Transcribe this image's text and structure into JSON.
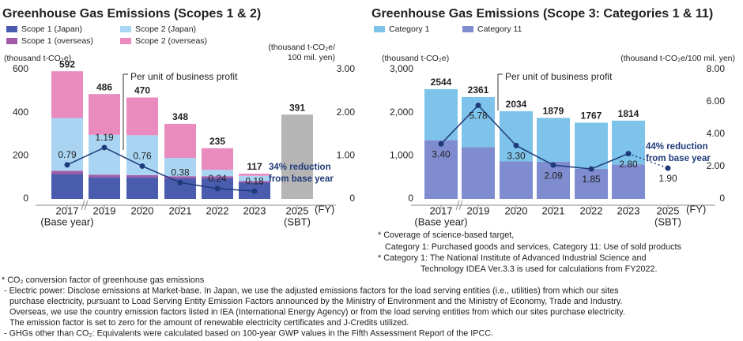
{
  "chart_data": [
    {
      "type": "bar",
      "title": "Greenhouse Gas Emissions (Scopes 1 & 2)",
      "categories": [
        "2017",
        "2019",
        "2020",
        "2021",
        "2022",
        "2023",
        "2025"
      ],
      "category_notes": [
        "(Base year)",
        null,
        null,
        null,
        null,
        null,
        "(SBT)"
      ],
      "x_unit": "(FY)",
      "y_label": [
        "(thousand t-CO₂e)"
      ],
      "y2_label": [
        "(thousand t-CO₂e/",
        "100 mil. yen)"
      ],
      "ylim": [
        0,
        600
      ],
      "yticks": [
        0,
        200,
        400,
        600
      ],
      "y2lim": [
        0,
        3
      ],
      "y2ticks": [
        0,
        {
          "value": 1,
          "label": "1.00"
        },
        {
          "value": 2,
          "label": "2.00"
        },
        {
          "value": 3,
          "label": "3.00"
        }
      ],
      "series": [
        {
          "name": "Scope 1 (Japan)",
          "color": "#4a5cae",
          "values": [
            115,
            100,
            100,
            95,
            95,
            75,
            null
          ]
        },
        {
          "name": "Scope 1 (overseas)",
          "color": "#a15ba8",
          "values": [
            15,
            12,
            10,
            10,
            10,
            8,
            null
          ]
        },
        {
          "name": "Scope 2 (Japan)",
          "color": "#a9d5f2",
          "values": [
            245,
            185,
            185,
            85,
            30,
            24,
            null
          ]
        },
        {
          "name": "Scope 2 (overseas)",
          "color": "#e98bbf",
          "values": [
            217,
            189,
            175,
            158,
            100,
            10,
            null
          ]
        }
      ],
      "totals": [
        592,
        486,
        470,
        348,
        235,
        117,
        null
      ],
      "target": {
        "color": "#b5b5b5",
        "values": [
          null,
          null,
          null,
          null,
          null,
          null,
          391
        ]
      },
      "line": {
        "color": "#1f3a7a",
        "axis": "y2",
        "values": [
          0.79,
          1.19,
          0.76,
          0.38,
          0.24,
          0.18,
          null
        ]
      },
      "annotations": [
        "Per unit of business profit",
        "34% reduction",
        "from base year"
      ]
    },
    {
      "type": "bar",
      "title": "Greenhouse Gas Emissions (Scope 3: Categories 1 & 11)",
      "categories": [
        "2017",
        "2019",
        "2020",
        "2021",
        "2022",
        "2023",
        "2025"
      ],
      "category_notes": [
        "(Base year)",
        null,
        null,
        null,
        null,
        null,
        "(SBT)"
      ],
      "x_unit": "(FY)",
      "y_label": [
        "(thousand t-CO₂e)"
      ],
      "y2_label": [
        "(thousand t-CO₂e/100 mil. yen)"
      ],
      "ylim": [
        0,
        3000
      ],
      "yticks": [
        0,
        {
          "value": 1000,
          "label": "1,000"
        },
        {
          "value": 2000,
          "label": "2,000"
        },
        {
          "value": 3000,
          "label": "3,000"
        }
      ],
      "y2lim": [
        0,
        8
      ],
      "y2ticks": [
        0,
        {
          "value": 2,
          "label": "2.00"
        },
        {
          "value": 4,
          "label": "4.00"
        },
        {
          "value": 6,
          "label": "6.00"
        },
        {
          "value": 8,
          "label": "8.00"
        }
      ],
      "series": [
        {
          "name": "Category 11",
          "color": "#7f8ccf",
          "values": [
            1360,
            1200,
            870,
            860,
            700,
            800,
            null
          ]
        },
        {
          "name": "Category 1",
          "color": "#7ec4ea",
          "values": [
            1184,
            1161,
            1164,
            1019,
            1067,
            1014,
            null
          ]
        }
      ],
      "legend_order": [
        1,
        0
      ],
      "totals": [
        2544,
        2361,
        2034,
        1879,
        1767,
        1814,
        null
      ],
      "line": {
        "color": "#1f3a7a",
        "axis": "y2",
        "values": [
          3.4,
          5.78,
          3.3,
          2.09,
          1.85,
          2.8,
          1.9
        ],
        "value_labels": [
          "3.40",
          "5.78",
          "3.30",
          "2.09",
          "1.85",
          "2.80",
          "1.90"
        ],
        "last_segment_dotted": true
      },
      "annotations": [
        "Per unit of business profit",
        "44% reduction",
        "from base year"
      ],
      "notes": [
        "* Coverage of science-based target,",
        "Category 1: Purchased goods and services, Category 11: Use of sold products",
        "* Category 1: The National Institute of Advanced Industrial Science and",
        "Technology IDEA Ver.3.3 is used for calculations from FY2022."
      ]
    }
  ],
  "notes": [
    "* CO₂ conversion factor of greenhouse gas emissions",
    "- Electric power: Disclose emissions at Market-base. In Japan, we use the adjusted emissions factors for the load serving entities (i.e., utilities) from which our sites",
    "purchase electricity, pursuant to Load Serving Entity Emission Factors announced by the Ministry of Environment and the Ministry of Economy, Trade and Industry.",
    "Overseas, we use the country emission factors listed in IEA (International Energy Agency) or from the load serving entities from which our sites purchase electricity.",
    "The emission factor is set to zero for the amount of renewable electricity certificates and J-Credits utilized.",
    "- GHGs other than CO₂: Equivalents were calculated based on 100-year GWP values in the Fifth Assessment Report of the IPCC."
  ]
}
